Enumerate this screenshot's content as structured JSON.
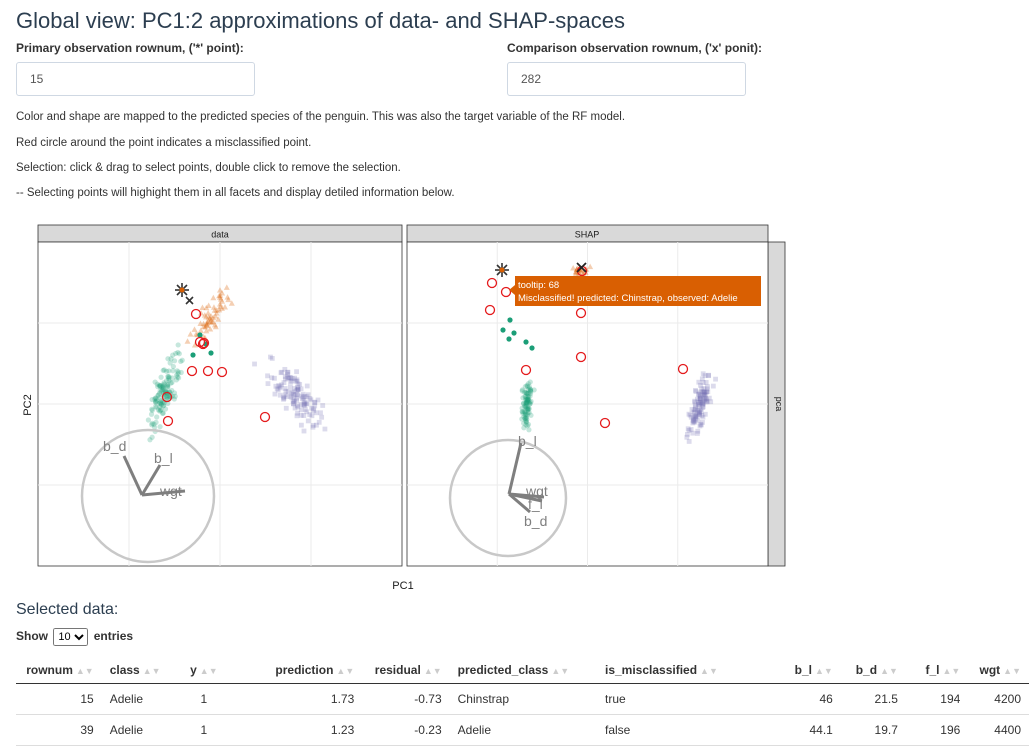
{
  "page": {
    "title": "Global view: PC1:2 approximations of data- and SHAP-spaces",
    "primary_label": "Primary observation rownum, ('*' point):",
    "primary_value": "15",
    "comparison_label": "Comparison observation rownum, ('x' ponit):",
    "comparison_value": "282",
    "desc1": "Color and shape are mapped to the predicted species of the penguin. This was also the target variable of the RF model.",
    "desc2": "Red circle around the point indicates a misclassified point.",
    "desc3": "Selection: click & drag to select points, double click to remove the selection.",
    "desc4": "-- Selecting points will highight them in all facets and display detiled information below."
  },
  "chart_data": {
    "type": "scatter",
    "facets": [
      "data",
      "SHAP"
    ],
    "row_facet": "pca",
    "xlabel": "PC1",
    "ylabel": "PC2",
    "legend": "none",
    "colors": {
      "Adelie": "#1b9e77",
      "Chinstrap": "#d95f02",
      "Gentoo": "#7570b3",
      "misclassified": "#e41a1c",
      "axes": "#7f7f7f"
    },
    "axis_labels": {
      "data": [
        "b_d",
        "b_l",
        "wgt"
      ],
      "SHAP": [
        "b_l",
        "wgt",
        "f_l",
        "b_d"
      ]
    },
    "tooltip": {
      "line1": "tooltip: 68",
      "line2": "Misclassified! predicted: Chinstrap, observed: Adelie"
    }
  },
  "table": {
    "title": "Selected data:",
    "show_label": "Show",
    "entries_value": "10",
    "entries_label": "entries",
    "columns": [
      "rownum",
      "class",
      "y",
      "prediction",
      "residual",
      "predicted_class",
      "is_misclassified",
      "b_l",
      "b_d",
      "f_l",
      "wgt"
    ],
    "rows": [
      [
        "15",
        "Adelie",
        "1",
        "1.73",
        "-0.73",
        "Chinstrap",
        "true",
        "46",
        "21.5",
        "194",
        "4200"
      ],
      [
        "39",
        "Adelie",
        "1",
        "1.23",
        "-0.23",
        "Adelie",
        "false",
        "44.1",
        "19.7",
        "196",
        "4400"
      ]
    ]
  }
}
